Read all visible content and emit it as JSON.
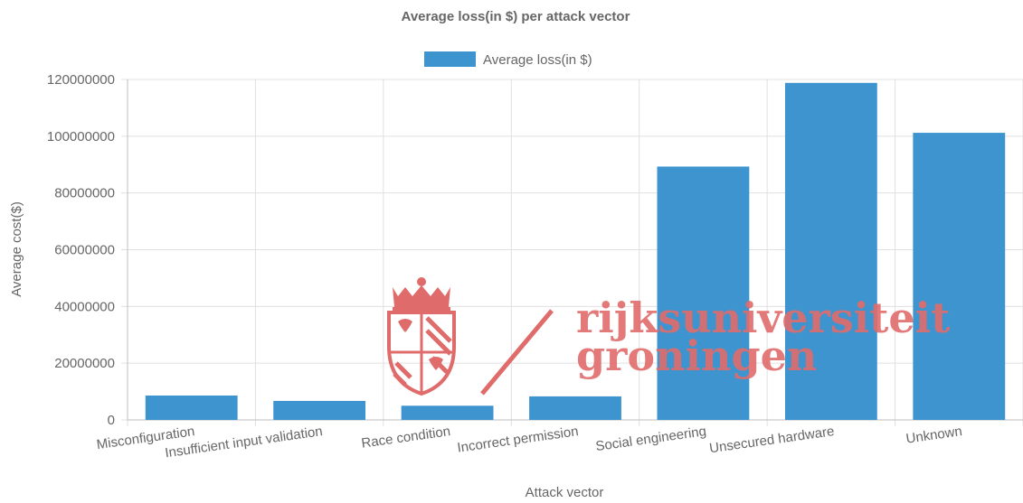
{
  "chart_data": {
    "type": "bar",
    "title": "Average loss(in $) per attack vector",
    "xlabel": "Attack vector",
    "ylabel": "Average cost($)",
    "ylim": [
      0,
      120000000
    ],
    "yticks": [
      0,
      20000000,
      40000000,
      60000000,
      80000000,
      100000000,
      120000000
    ],
    "categories": [
      "Misconfiguration",
      "Insufficient input validation",
      "Race condition",
      "Incorrect permission",
      "Social engineering",
      "Unsecured hardware",
      "Unknown"
    ],
    "series": [
      {
        "name": "Average loss(in $)",
        "color": "#3d94cf",
        "values": [
          8600000,
          6700000,
          5000000,
          8300000,
          89300000,
          118800000,
          101200000
        ]
      }
    ],
    "legend": "top-center",
    "grid": true
  },
  "watermark": {
    "line1": "rijksuniversiteit",
    "line2": "groningen",
    "color": "#e06b6b",
    "icon": "university-crest-icon"
  }
}
